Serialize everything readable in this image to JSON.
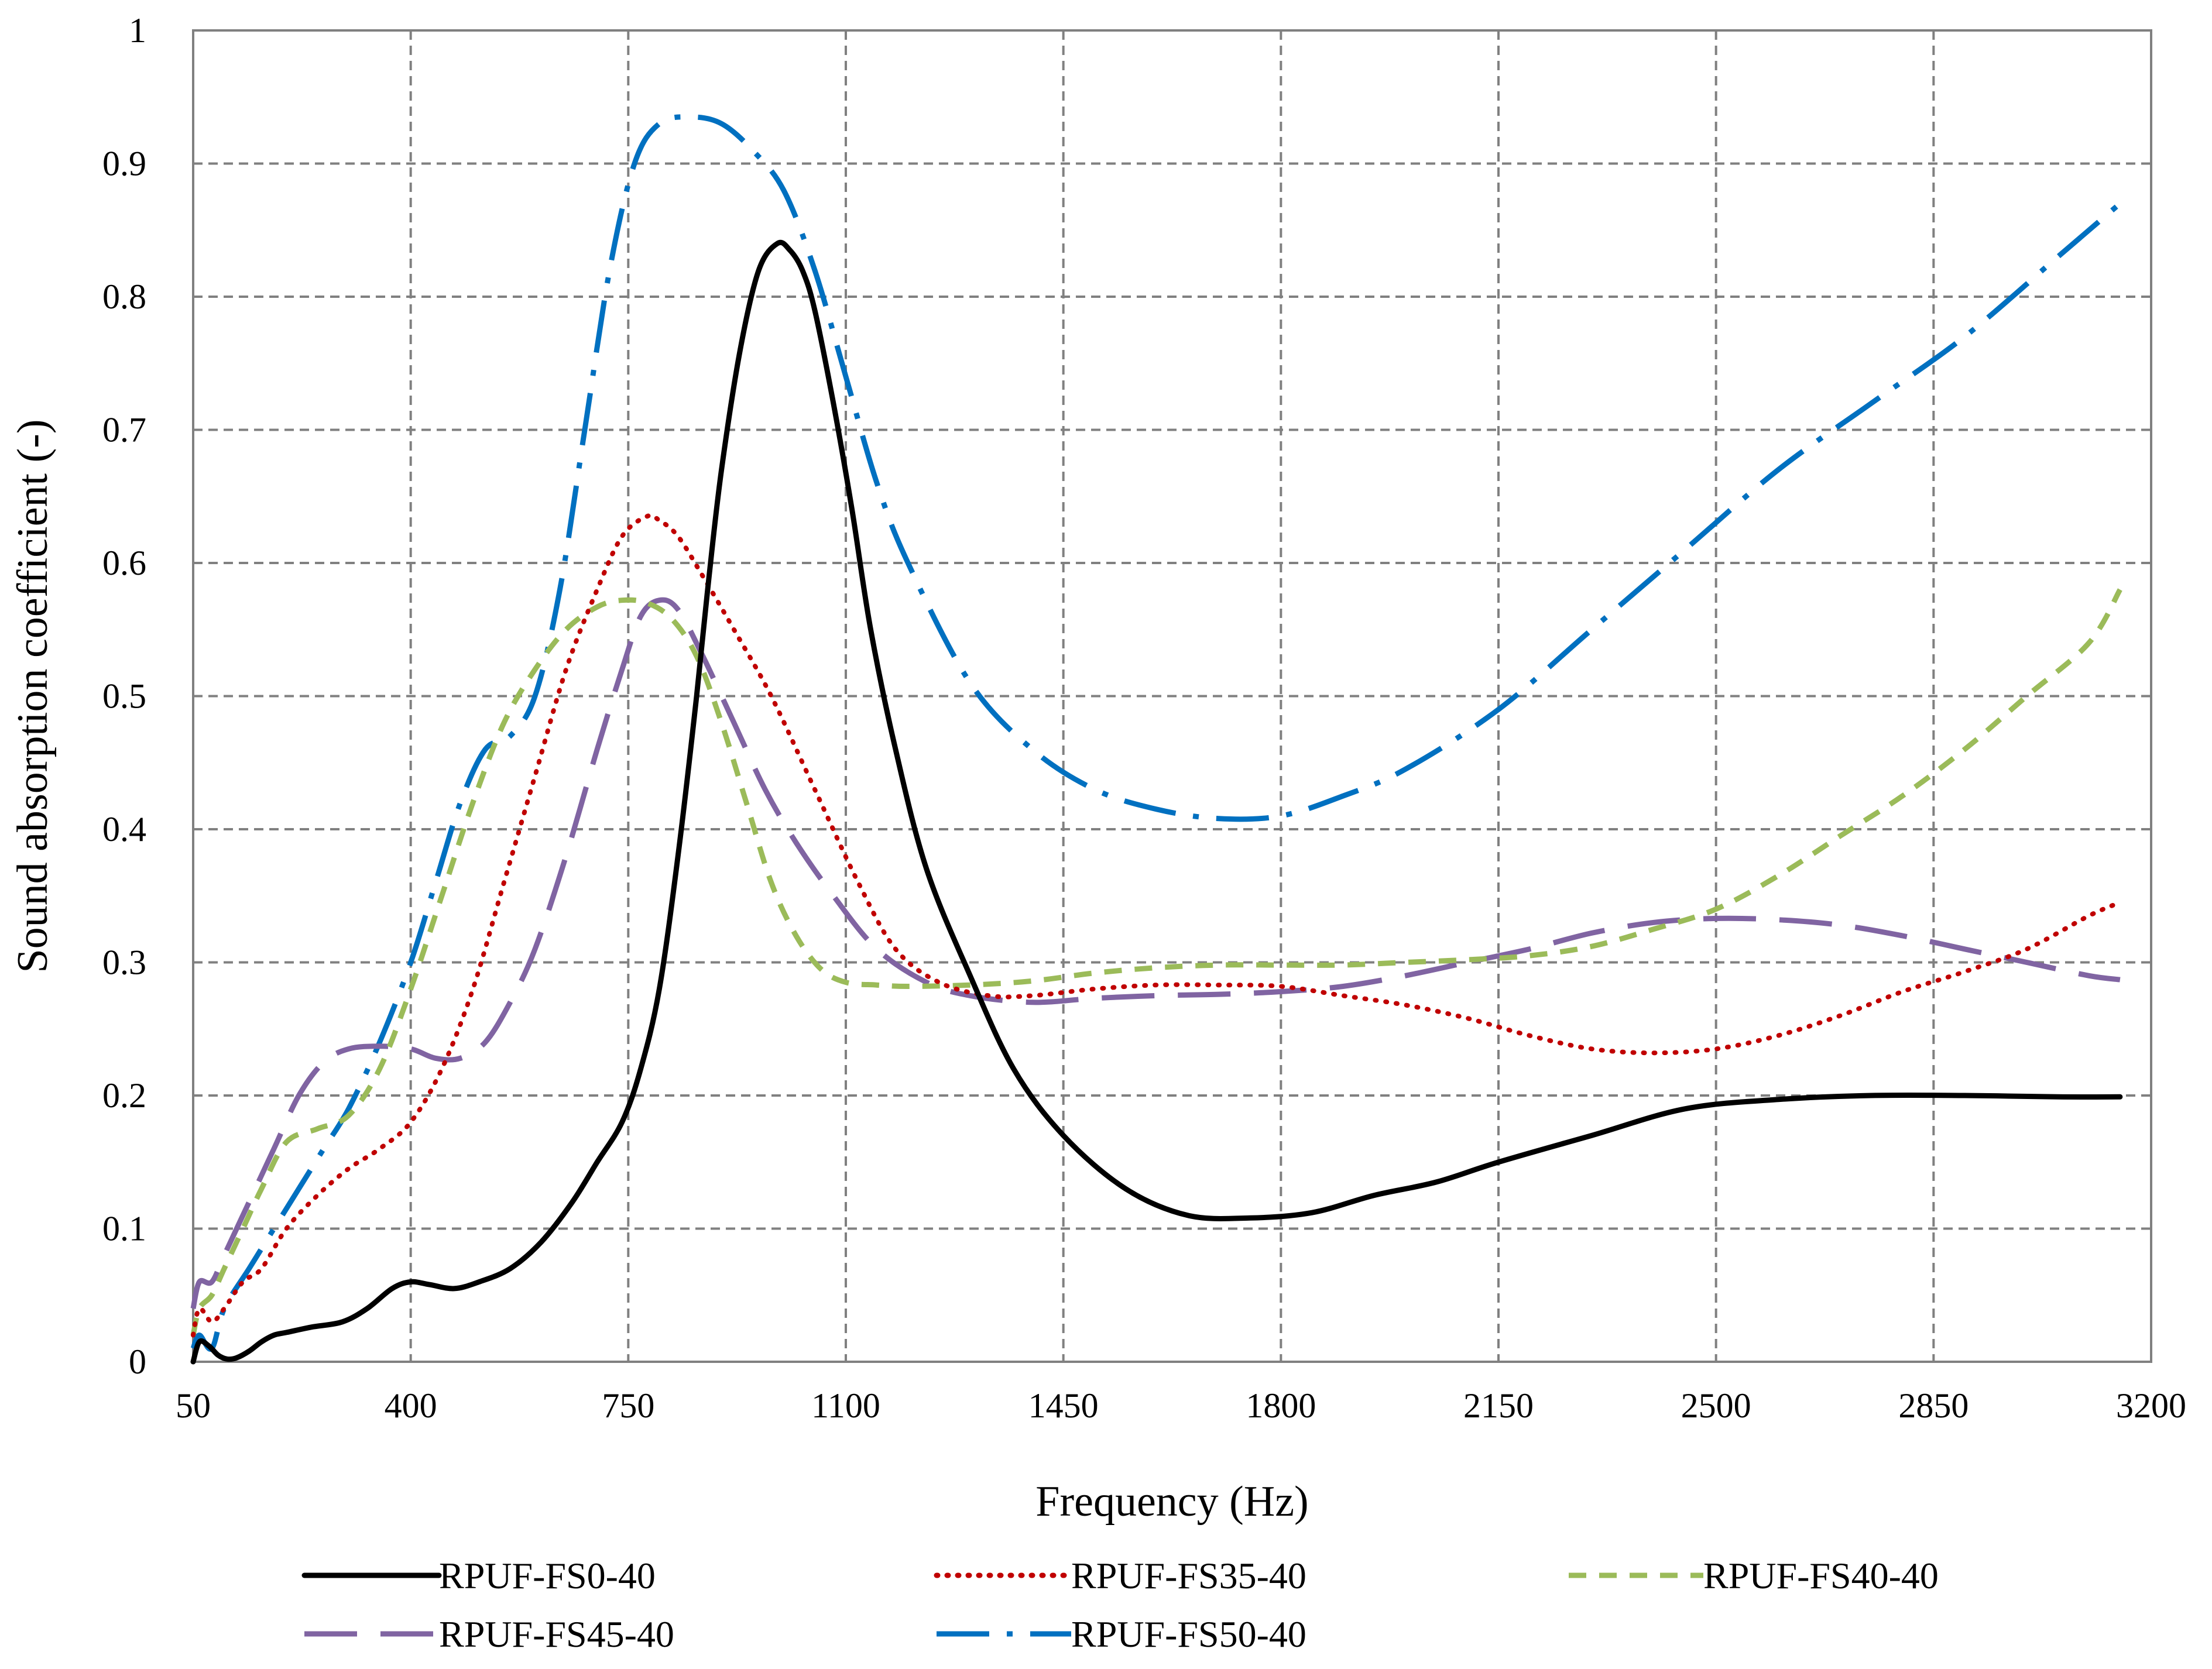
{
  "chart_data": {
    "type": "line",
    "title": "",
    "xlabel": "Frequency (Hz)",
    "ylabel": "Sound absorption coefficient (-)",
    "xlim": [
      50,
      3200
    ],
    "ylim": [
      0,
      1
    ],
    "xticks": [
      50,
      400,
      750,
      1100,
      1450,
      1800,
      2150,
      2500,
      2850,
      3200
    ],
    "xtick_labels": [
      "50",
      "400",
      "750",
      "1100",
      "1450",
      "1800",
      "2150",
      "2500",
      "2850",
      "3200"
    ],
    "yticks": [
      0,
      0.1,
      0.2,
      0.3,
      0.4,
      0.5,
      0.6,
      0.7,
      0.8,
      0.9,
      1
    ],
    "ytick_labels": [
      "0",
      "0.1",
      "0.2",
      "0.3",
      "0.4",
      "0.5",
      "0.6",
      "0.7",
      "0.8",
      "0.9",
      "1"
    ],
    "grid": true,
    "legend_position": "bottom",
    "series": [
      {
        "name": "RPUF-FS0-40",
        "color": "#000000",
        "dash": "solid",
        "x": [
          50,
          60,
          75,
          90,
          105,
          120,
          140,
          160,
          180,
          200,
          240,
          290,
          330,
          370,
          400,
          430,
          470,
          510,
          560,
          610,
          660,
          700,
          740,
          770,
          800,
          830,
          860,
          880,
          900,
          930,
          960,
          990,
          1010,
          1030,
          1050,
          1080,
          1110,
          1140,
          1180,
          1230,
          1300,
          1370,
          1450,
          1550,
          1650,
          1750,
          1850,
          1950,
          2050,
          2150,
          2300,
          2450,
          2600,
          2750,
          2900,
          3050,
          3150
        ],
        "y": [
          0,
          0.015,
          0.012,
          0.005,
          0.002,
          0.003,
          0.008,
          0.015,
          0.02,
          0.022,
          0.026,
          0.03,
          0.04,
          0.055,
          0.06,
          0.058,
          0.055,
          0.06,
          0.07,
          0.09,
          0.12,
          0.15,
          0.18,
          0.22,
          0.28,
          0.38,
          0.5,
          0.59,
          0.67,
          0.76,
          0.82,
          0.84,
          0.835,
          0.82,
          0.79,
          0.72,
          0.64,
          0.55,
          0.46,
          0.37,
          0.29,
          0.22,
          0.17,
          0.13,
          0.11,
          0.108,
          0.112,
          0.125,
          0.135,
          0.15,
          0.17,
          0.19,
          0.197,
          0.2,
          0.2,
          0.199,
          0.199
        ]
      },
      {
        "name": "RPUF-FS35-40",
        "color": "#c00000",
        "dash": "dotted",
        "x": [
          50,
          60,
          80,
          100,
          130,
          160,
          200,
          250,
          300,
          350,
          400,
          450,
          500,
          550,
          600,
          650,
          700,
          740,
          780,
          800,
          830,
          870,
          920,
          980,
          1050,
          1120,
          1180,
          1250,
          1330,
          1400,
          1500,
          1600,
          1700,
          1800,
          1900,
          2000,
          2100,
          2200,
          2300,
          2400,
          2500,
          2600,
          2700,
          2800,
          2900,
          3000,
          3100,
          3150
        ],
        "y": [
          0.02,
          0.04,
          0.03,
          0.04,
          0.06,
          0.07,
          0.1,
          0.125,
          0.145,
          0.16,
          0.18,
          0.22,
          0.28,
          0.36,
          0.44,
          0.52,
          0.58,
          0.62,
          0.635,
          0.632,
          0.62,
          0.59,
          0.55,
          0.5,
          0.43,
          0.36,
          0.31,
          0.285,
          0.275,
          0.275,
          0.28,
          0.283,
          0.283,
          0.282,
          0.275,
          0.268,
          0.258,
          0.245,
          0.235,
          0.232,
          0.235,
          0.245,
          0.26,
          0.278,
          0.293,
          0.31,
          0.335,
          0.345
        ]
      },
      {
        "name": "RPUF-FS40-40",
        "color": "#9bbb59",
        "dash": "dashed",
        "x": [
          50,
          60,
          80,
          100,
          130,
          160,
          200,
          250,
          300,
          350,
          400,
          450,
          500,
          550,
          600,
          650,
          700,
          740,
          780,
          820,
          860,
          900,
          940,
          980,
          1020,
          1060,
          1100,
          1150,
          1200,
          1300,
          1400,
          1500,
          1600,
          1700,
          1800,
          1900,
          2000,
          2100,
          2200,
          2300,
          2400,
          2500,
          2600,
          2700,
          2800,
          2900,
          3000,
          3100,
          3150
        ],
        "y": [
          0.02,
          0.04,
          0.05,
          0.07,
          0.1,
          0.13,
          0.165,
          0.175,
          0.185,
          0.22,
          0.28,
          0.35,
          0.42,
          0.48,
          0.52,
          0.55,
          0.567,
          0.572,
          0.57,
          0.558,
          0.53,
          0.48,
          0.42,
          0.36,
          0.32,
          0.295,
          0.285,
          0.283,
          0.282,
          0.283,
          0.286,
          0.292,
          0.296,
          0.298,
          0.298,
          0.298,
          0.3,
          0.302,
          0.305,
          0.312,
          0.325,
          0.34,
          0.365,
          0.395,
          0.425,
          0.46,
          0.5,
          0.54,
          0.58
        ]
      },
      {
        "name": "RPUF-FS45-40",
        "color": "#8064a2",
        "dash": "longdash",
        "x": [
          50,
          60,
          80,
          100,
          140,
          180,
          220,
          260,
          300,
          350,
          400,
          440,
          480,
          520,
          560,
          600,
          650,
          700,
          740,
          770,
          800,
          830,
          870,
          920,
          970,
          1020,
          1080,
          1150,
          1230,
          1300,
          1400,
          1500,
          1600,
          1700,
          1800,
          1900,
          2000,
          2100,
          2200,
          2300,
          2400,
          2500,
          2600,
          2700,
          2800,
          2900,
          3000,
          3100,
          3150
        ],
        "y": [
          0.04,
          0.06,
          0.06,
          0.08,
          0.12,
          0.16,
          0.2,
          0.225,
          0.235,
          0.237,
          0.235,
          0.228,
          0.228,
          0.24,
          0.27,
          0.31,
          0.38,
          0.46,
          0.52,
          0.56,
          0.572,
          0.565,
          0.53,
          0.48,
          0.43,
          0.39,
          0.35,
          0.31,
          0.285,
          0.275,
          0.27,
          0.273,
          0.275,
          0.276,
          0.278,
          0.282,
          0.29,
          0.3,
          0.31,
          0.322,
          0.33,
          0.333,
          0.332,
          0.328,
          0.32,
          0.31,
          0.3,
          0.29,
          0.287
        ]
      },
      {
        "name": "RPUF-FS50-40",
        "color": "#0070c0",
        "dash": "dashdot",
        "x": [
          50,
          60,
          80,
          100,
          140,
          180,
          220,
          260,
          300,
          350,
          400,
          440,
          480,
          520,
          560,
          600,
          640,
          680,
          720,
          760,
          800,
          850,
          900,
          950,
          1000,
          1050,
          1100,
          1150,
          1200,
          1300,
          1400,
          1500,
          1600,
          1700,
          1800,
          1900,
          2000,
          2150,
          2300,
          2450,
          2600,
          2750,
          2900,
          3050,
          3150
        ],
        "y": [
          0.01,
          0.02,
          0.01,
          0.04,
          0.07,
          0.1,
          0.13,
          0.16,
          0.19,
          0.24,
          0.3,
          0.36,
          0.42,
          0.46,
          0.47,
          0.5,
          0.58,
          0.7,
          0.82,
          0.9,
          0.93,
          0.935,
          0.93,
          0.91,
          0.88,
          0.82,
          0.74,
          0.66,
          0.6,
          0.51,
          0.46,
          0.43,
          0.415,
          0.408,
          0.41,
          0.425,
          0.445,
          0.49,
          0.55,
          0.61,
          0.67,
          0.72,
          0.77,
          0.83,
          0.87
        ]
      }
    ]
  }
}
